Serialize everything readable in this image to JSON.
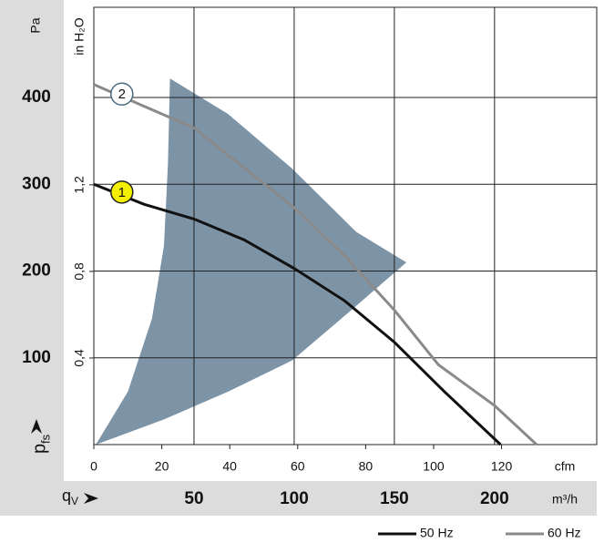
{
  "chart_data": {
    "type": "line",
    "y_label": {
      "main": "p",
      "sub": "fs"
    },
    "y_unit": "Pa",
    "y2_unit": "in H₂O",
    "x_label": {
      "main": "q",
      "sub": "V"
    },
    "x_unit": "m³/h",
    "x2_unit": "cfm",
    "xlim": [
      0,
      251
    ],
    "xticks": [
      50,
      100,
      150,
      200
    ],
    "x2lim": [
      0,
      148
    ],
    "x2ticks": [
      0,
      20,
      40,
      60,
      80,
      100,
      120
    ],
    "ylim": [
      0,
      504
    ],
    "yticks": [
      100,
      200,
      300,
      400
    ],
    "y2lim": [
      0,
      2.02
    ],
    "y2ticks": [
      {
        "value": 0.4,
        "label": "0,4"
      },
      {
        "value": 0.8,
        "label": "0,8"
      },
      {
        "value": 1.2,
        "label": "1,2"
      }
    ],
    "grid": true,
    "operating_range": {
      "color": "#7d93a6",
      "x": [
        1,
        17,
        29,
        35,
        37,
        38,
        67,
        99,
        131,
        156,
        126,
        99,
        67,
        35
      ],
      "y": [
        0,
        61,
        145,
        229,
        324,
        422,
        381,
        318,
        245,
        210,
        150,
        97,
        61,
        29
      ]
    },
    "series": [
      {
        "name": "50 Hz",
        "color": "#111111",
        "x": [
          0,
          25,
          50,
          75,
          100,
          125,
          150,
          175,
          203
        ],
        "values": [
          300,
          277,
          260,
          236,
          203,
          166,
          118,
          61,
          0
        ],
        "marker": {
          "label": "1",
          "x": 14,
          "y": 291,
          "fill": "#f5f000",
          "stroke": "#222222"
        }
      },
      {
        "name": "60 Hz",
        "color": "#8a8a8a",
        "x": [
          0,
          50,
          100,
          125,
          150,
          172,
          200,
          221
        ],
        "values": [
          415,
          365,
          273,
          218,
          155,
          92,
          45,
          0
        ],
        "marker": {
          "label": "2",
          "x": 14,
          "y": 404,
          "fill": "#ffffff",
          "stroke": "#4a6a80"
        }
      }
    ]
  }
}
